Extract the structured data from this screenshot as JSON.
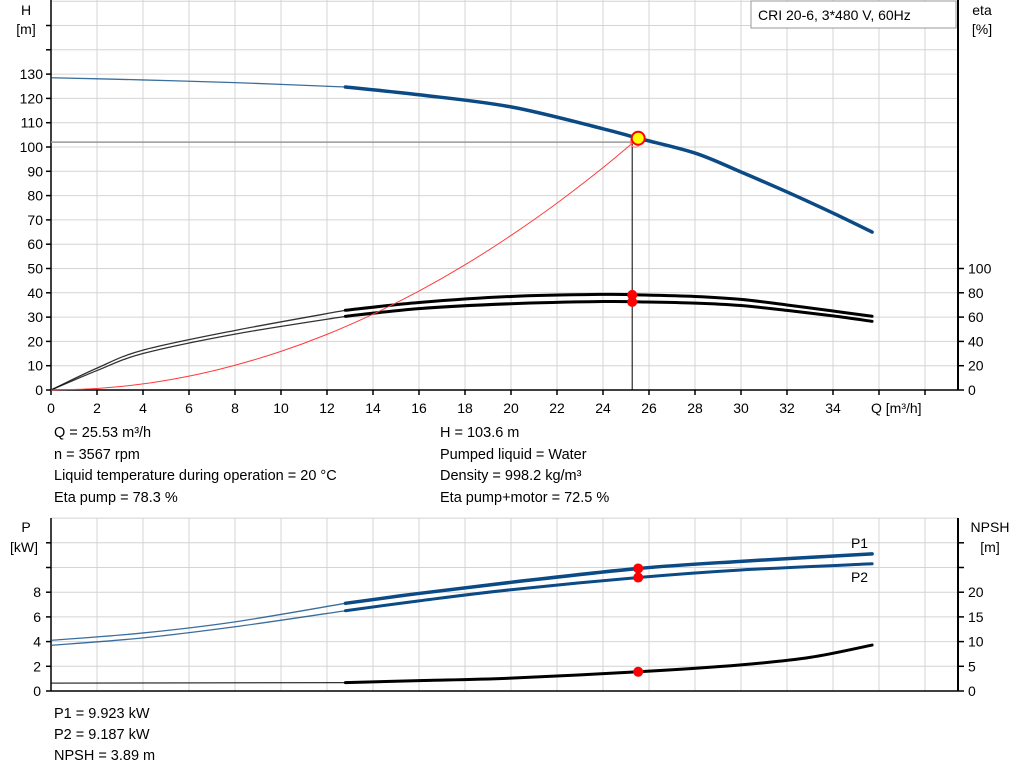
{
  "chart_data": [
    {
      "type": "line",
      "title": "CRI 20-6, 3*480 V, 60Hz",
      "xlabel": "Q [m³/h]",
      "ylabel_left": [
        "H",
        "[m]"
      ],
      "ylabel_right": [
        "eta",
        "[%]"
      ],
      "xlim": [
        0,
        39.4
      ],
      "ylim_left": [
        0,
        160
      ],
      "ylim_right": [
        0,
        320
      ],
      "x_ticks": [
        "0",
        "2",
        "4",
        "6",
        "8",
        "10",
        "12",
        "14",
        "16",
        "18",
        "20",
        "22",
        "24",
        "26",
        "28",
        "30",
        "32",
        "34"
      ],
      "y_ticks_left": [
        "0",
        "10",
        "20",
        "30",
        "40",
        "50",
        "60",
        "70",
        "80",
        "90",
        "100",
        "110",
        "120",
        "130"
      ],
      "y_ticks_right": [
        "0",
        "20",
        "40",
        "60",
        "80",
        "100"
      ],
      "grid": true,
      "series": [
        {
          "axis": "left",
          "color": "#0b4a85",
          "thin_below_q": 12.8,
          "x": [
            0,
            4,
            8,
            12.8,
            16,
            20,
            24,
            25.53,
            28,
            30,
            32,
            34,
            35.7
          ],
          "y": [
            128.5,
            127.6,
            126.5,
            124.7,
            121.5,
            116.5,
            107.5,
            103.6,
            97.5,
            89.7,
            81.5,
            72.8,
            65
          ]
        },
        {
          "axis": "right",
          "color": "#000000",
          "thin_below_q": 12.8,
          "x": [
            0,
            2,
            4,
            8,
            12.8,
            16,
            20,
            24,
            25.53,
            28,
            30,
            32,
            34,
            35.7
          ],
          "y": [
            0,
            18,
            32.8,
            49,
            65.6,
            72,
            77,
            78.7,
            78.3,
            77,
            74.6,
            70,
            65,
            60.7
          ]
        },
        {
          "axis": "right",
          "color": "#000000",
          "thin_below_q": 12.8,
          "x": [
            0,
            2,
            4,
            8,
            12.8,
            16,
            20,
            24,
            25.53,
            28,
            30,
            32,
            34,
            35.7
          ],
          "y": [
            0,
            16,
            30,
            46,
            60.6,
            67,
            71,
            72.8,
            72.5,
            71.5,
            69.5,
            65.5,
            61,
            56.5
          ]
        },
        {
          "axis": "left",
          "color": "#ff3b3b",
          "system_curve": true,
          "x": [
            0,
            2,
            4,
            6,
            8,
            10,
            12,
            14,
            16,
            18,
            20,
            22,
            24,
            25.53
          ],
          "y": [
            0,
            0.64,
            2.5,
            5.7,
            10.2,
            15.9,
            22.9,
            31.2,
            40.7,
            51.5,
            63.6,
            76.9,
            91.5,
            103.6
          ]
        }
      ],
      "operating_point": {
        "q": 25.53,
        "h": 103.6,
        "eta_pump": 78.3,
        "eta_total": 72.5,
        "hline_h": 102
      },
      "colors": {
        "marker_fill": "#ffff00",
        "marker_stroke": "#ff0000",
        "dot": "#ff0000"
      }
    },
    {
      "type": "line",
      "ylabel_left": [
        "P",
        "[kW]"
      ],
      "ylabel_right": [
        "NPSH",
        "[m]"
      ],
      "xlim": [
        0,
        39.4
      ],
      "ylim_left": [
        0,
        14
      ],
      "ylim_right": [
        0,
        35
      ],
      "y_ticks_left": [
        "0",
        "2",
        "4",
        "6",
        "8"
      ],
      "y_ticks_right": [
        "0",
        "5",
        "10",
        "15",
        "20"
      ],
      "grid": true,
      "series": [
        {
          "name": "P1",
          "axis": "left",
          "color": "#0b4a85",
          "thin_below_q": 12.8,
          "x": [
            0,
            4,
            8,
            12.8,
            16,
            20,
            25.53,
            30,
            35.7
          ],
          "y": [
            4.1,
            4.7,
            5.6,
            7.1,
            7.9,
            8.8,
            9.92,
            10.5,
            11.1
          ]
        },
        {
          "name": "P2",
          "axis": "left",
          "color": "#0b4a85",
          "thin_below_q": 12.8,
          "x": [
            0,
            4,
            8,
            12.8,
            16,
            20,
            25.53,
            30,
            35.7
          ],
          "y": [
            3.7,
            4.3,
            5.2,
            6.5,
            7.3,
            8.2,
            9.19,
            9.8,
            10.3
          ]
        },
        {
          "axis": "right",
          "color": "#000000",
          "thin_below_q": 12.8,
          "x": [
            0,
            12.8,
            16,
            20,
            25.53,
            30,
            33,
            35.7
          ],
          "y": [
            1.6,
            1.7,
            2.1,
            2.6,
            3.89,
            5.3,
            6.8,
            9.3
          ]
        }
      ],
      "operating_point": {
        "q": 25.53,
        "p1": 9.923,
        "p2": 9.187,
        "npsh": 3.89
      }
    }
  ],
  "info": {
    "left": [
      "Q = 25.53 m³/h",
      "n = 3567 rpm",
      "Liquid temperature during operation = 20 °C",
      "Eta pump = 78.3 %"
    ],
    "right": [
      "H = 103.6 m",
      "Pumped liquid = Water",
      "Density = 998.2 kg/m³",
      "Eta pump+motor = 72.5 %"
    ],
    "bottom": [
      "P1 = 9.923 kW",
      "P2 = 9.187 kW",
      "NPSH = 3.89 m"
    ]
  }
}
